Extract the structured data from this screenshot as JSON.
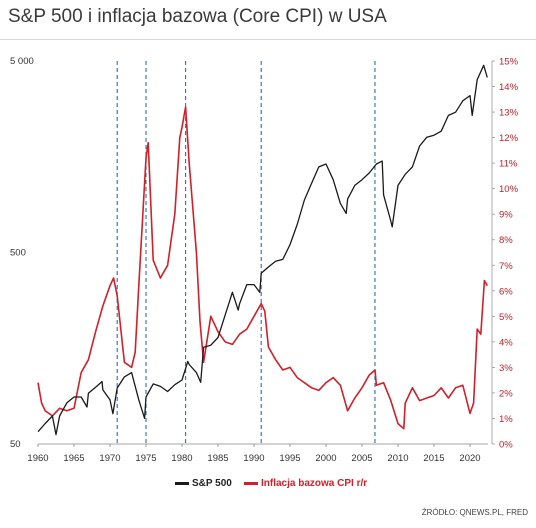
{
  "title": "S&P 500 i inflacja bazowa (Core CPI) w USA",
  "source": "ŹRÓDŁO: QNEWS.PL, FRED",
  "colors": {
    "sp500": "#1a1a1a",
    "cpi": "#d0202a",
    "vline": "#2f6db0",
    "right_axis_text": "#c0202a"
  },
  "chart_data": {
    "type": "line",
    "x_range": [
      1960,
      2022.5
    ],
    "x_ticks": [
      1960,
      1965,
      1970,
      1975,
      1980,
      1985,
      1990,
      1995,
      2000,
      2005,
      2010,
      2015,
      2020
    ],
    "x_tick_labels": [
      "1960",
      "1965",
      "1970",
      "1975",
      "1980",
      "1985",
      "1990",
      "1995",
      "2000",
      "2005",
      "2010",
      "2015",
      "2020"
    ],
    "y_left": {
      "scale": "log",
      "range": [
        50,
        5000
      ],
      "ticks": [
        50,
        500,
        5000
      ],
      "tick_labels": [
        "50",
        "500",
        "5 000"
      ]
    },
    "y_right": {
      "scale": "linear",
      "range": [
        0,
        15
      ],
      "ticks": [
        0,
        1,
        2,
        3,
        4,
        5,
        6,
        7,
        8,
        9,
        10,
        11,
        12,
        13,
        14,
        15
      ],
      "tick_labels": [
        "0%",
        "1%",
        "2%",
        "3%",
        "4%",
        "5%",
        "6%",
        "7%",
        "8%",
        "9%",
        "10%",
        "11%",
        "12%",
        "13%",
        "14%",
        "15%"
      ]
    },
    "vertical_lines": [
      1971,
      1975,
      1980.5,
      1991,
      2006.8
    ],
    "series": [
      {
        "name": "S&P 500",
        "axis": "left",
        "x": [
          1960,
          1961,
          1962,
          1962.5,
          1963,
          1964,
          1965,
          1966,
          1966.8,
          1967,
          1968,
          1968.9,
          1969,
          1970,
          1970.4,
          1971,
          1972,
          1973,
          1974,
          1974.8,
          1975,
          1976,
          1977,
          1978,
          1979,
          1980,
          1980.8,
          1981,
          1982,
          1982.6,
          1983,
          1984,
          1985,
          1986,
          1987,
          1987.8,
          1988,
          1989,
          1990,
          1990.8,
          1991,
          1992,
          1993,
          1994,
          1995,
          1996,
          1997,
          1998,
          1999,
          2000,
          2001,
          2002,
          2002.8,
          2003,
          2004,
          2005,
          2006,
          2007,
          2007.8,
          2008,
          2009,
          2009.2,
          2010,
          2011,
          2012,
          2013,
          2014,
          2015,
          2016,
          2017,
          2018,
          2019,
          2020,
          2020.3,
          2021,
          2021.9,
          2022.4
        ],
        "values": [
          58,
          64,
          70,
          56,
          70,
          82,
          88,
          88,
          78,
          92,
          99,
          106,
          96,
          85,
          72,
          98,
          112,
          118,
          85,
          68,
          88,
          103,
          100,
          94,
          102,
          108,
          135,
          130,
          118,
          105,
          160,
          164,
          180,
          236,
          310,
          250,
          270,
          340,
          340,
          310,
          390,
          420,
          450,
          460,
          550,
          700,
          940,
          1150,
          1400,
          1450,
          1200,
          900,
          800,
          950,
          1120,
          1200,
          1300,
          1450,
          1500,
          1000,
          730,
          680,
          1120,
          1280,
          1400,
          1800,
          2000,
          2050,
          2150,
          2600,
          2700,
          3100,
          3300,
          2600,
          4000,
          4750,
          4100
        ]
      },
      {
        "name": "Inflacja bazowa CPI r/r",
        "axis": "right",
        "x": [
          1960,
          1960.5,
          1961,
          1962,
          1963,
          1964,
          1965,
          1966,
          1967,
          1968,
          1969,
          1970,
          1970.5,
          1971,
          1972,
          1973,
          1973.5,
          1974,
          1975,
          1975.3,
          1976,
          1977,
          1978,
          1979,
          1979.7,
          1980,
          1980.5,
          1981,
          1982,
          1982.5,
          1983,
          1984,
          1985,
          1986,
          1987,
          1988,
          1989,
          1990,
          1991,
          1991.5,
          1992,
          1993,
          1994,
          1995,
          1996,
          1997,
          1998,
          1999,
          2000,
          2001,
          2002,
          2003,
          2004,
          2005,
          2006,
          2006.8,
          2007,
          2008,
          2009,
          2010,
          2010.8,
          2011,
          2012,
          2013,
          2014,
          2015,
          2016,
          2017,
          2018,
          2019,
          2020,
          2020.5,
          2021,
          2021.5,
          2022,
          2022.4
        ],
        "values": [
          2.4,
          1.6,
          1.3,
          1.1,
          1.4,
          1.3,
          1.4,
          2.8,
          3.3,
          4.4,
          5.4,
          6.2,
          6.5,
          5.8,
          3.2,
          3.0,
          3.6,
          6.2,
          11.2,
          11.8,
          7.2,
          6.5,
          7.0,
          9.0,
          12.0,
          12.4,
          13.2,
          11.0,
          7.5,
          4.8,
          3.2,
          5.0,
          4.4,
          4.0,
          3.9,
          4.3,
          4.5,
          5.0,
          5.5,
          5.2,
          3.8,
          3.3,
          2.9,
          3.0,
          2.6,
          2.4,
          2.2,
          2.1,
          2.4,
          2.6,
          2.3,
          1.3,
          1.8,
          2.2,
          2.7,
          2.9,
          2.3,
          2.4,
          1.7,
          0.8,
          0.6,
          1.6,
          2.2,
          1.7,
          1.8,
          1.9,
          2.2,
          1.8,
          2.2,
          2.3,
          1.2,
          1.6,
          4.5,
          4.3,
          6.4,
          6.2
        ]
      }
    ]
  }
}
